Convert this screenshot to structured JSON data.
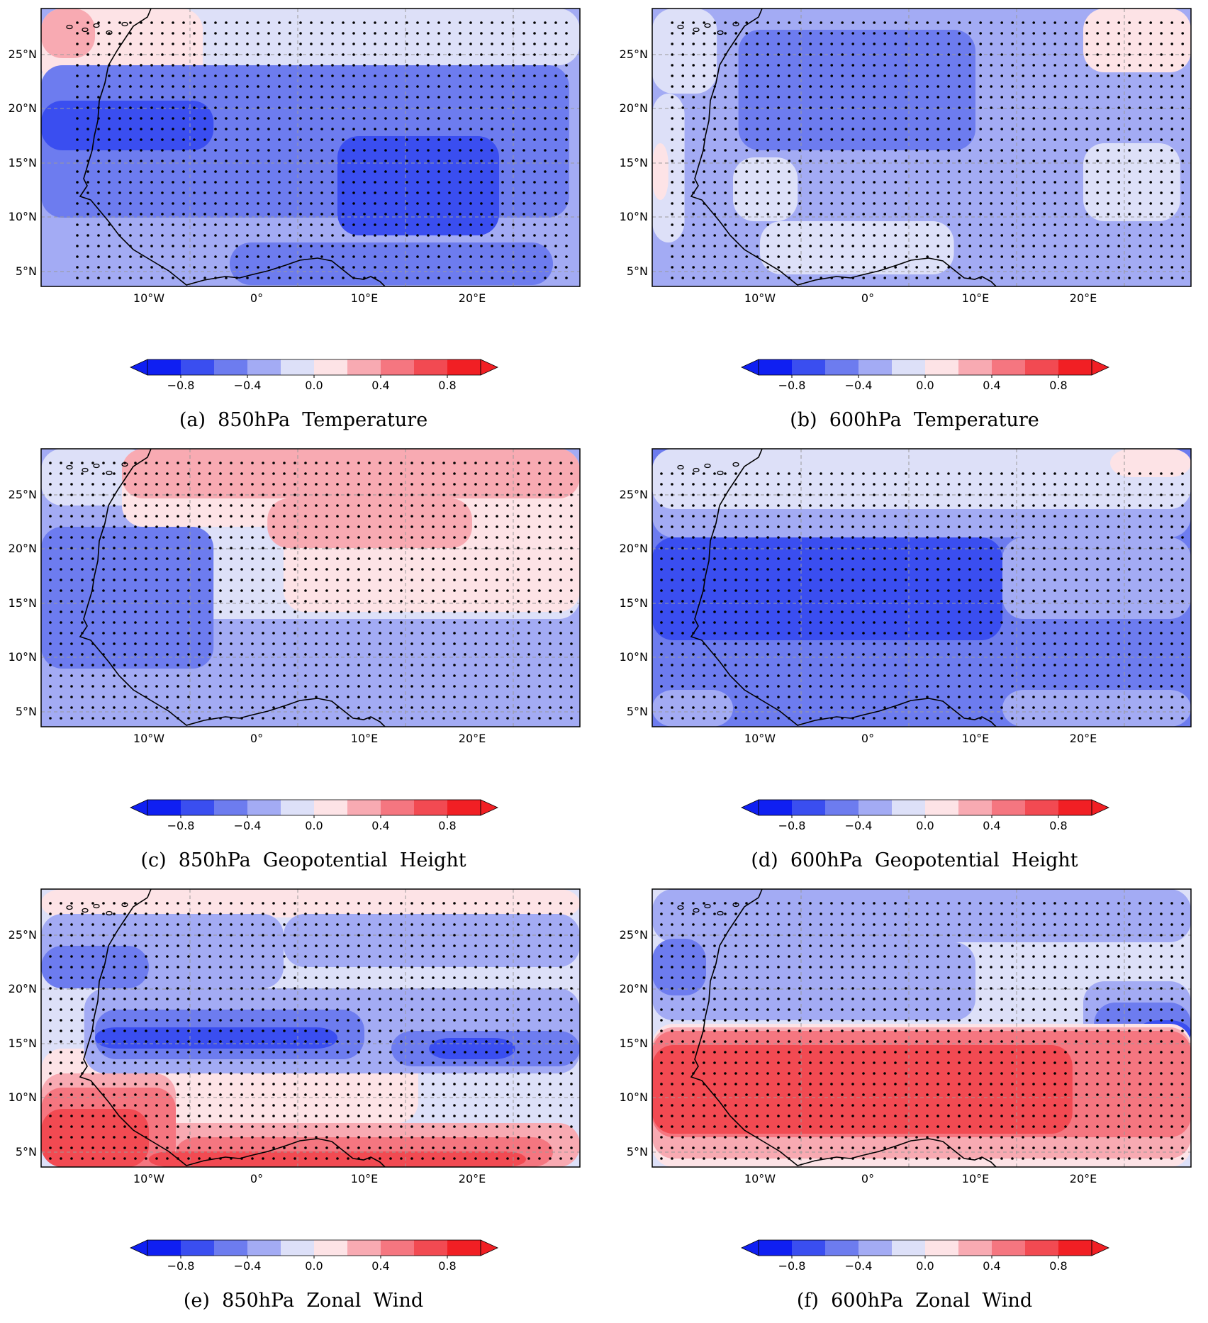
{
  "colorbar": {
    "colors": [
      "#0f1ff2",
      "#3a4ef0",
      "#6d7cef",
      "#a3abf4",
      "#dde0f8",
      "#fde3e6",
      "#f8aab2",
      "#f57680",
      "#f24a52",
      "#f11f24"
    ],
    "labels": [
      "−0.8",
      "−0.4",
      "0.0",
      "0.4",
      "0.8"
    ]
  },
  "axes": {
    "lon_labels": [
      "10°W",
      "0°",
      "10°E",
      "20°E"
    ],
    "lat_labels": [
      "25°N",
      "20°N",
      "15°N",
      "10°N",
      "5°N"
    ]
  },
  "panels": [
    {
      "id": "a",
      "caption": "(a)  850hPa  Temperature",
      "background": "#a3abf4",
      "layers": [
        {
          "color": "#dde0f8",
          "bands": [
            {
              "y0": 0,
              "y1": 80,
              "l": 0,
              "r": 1
            },
            {
              "y0": 80,
              "y1": 110,
              "l": 0,
              "r": 0.45
            }
          ]
        },
        {
          "color": "#fde3e6",
          "bands": [
            {
              "y0": 0,
              "y1": 110,
              "l": 0,
              "r": 0.3
            }
          ]
        },
        {
          "color": "#f8aab2",
          "bands": [
            {
              "y0": 0,
              "y1": 70,
              "l": 0,
              "r": 0.1
            }
          ]
        },
        {
          "color": "#6d7cef",
          "bands": [
            {
              "y0": 80,
              "y1": 295,
              "l": 0,
              "r": 0.98
            },
            {
              "y0": 330,
              "y1": 390,
              "l": 0.35,
              "r": 0.95
            }
          ]
        },
        {
          "color": "#3a4ef0",
          "bands": [
            {
              "y0": 130,
              "y1": 200,
              "l": 0,
              "r": 0.32
            },
            {
              "y0": 180,
              "y1": 320,
              "l": 0.55,
              "r": 0.85
            }
          ]
        }
      ],
      "stipple": [
        {
          "y0": 20,
          "y1": 385,
          "l": 0.05,
          "r": 0.99
        }
      ]
    },
    {
      "id": "b",
      "caption": "(b)  600hPa  Temperature",
      "background": "#a3abf4",
      "layers": [
        {
          "color": "#dde0f8",
          "bands": [
            {
              "y0": 0,
              "y1": 120,
              "l": 0,
              "r": 0.12
            },
            {
              "y0": 120,
              "y1": 330,
              "l": 0,
              "r": 0.06
            },
            {
              "y0": 300,
              "y1": 375,
              "l": 0.2,
              "r": 0.56
            },
            {
              "y0": 210,
              "y1": 300,
              "l": 0.15,
              "r": 0.27
            },
            {
              "y0": 190,
              "y1": 300,
              "l": 0.8,
              "r": 0.98
            }
          ]
        },
        {
          "color": "#fde3e6",
          "bands": [
            {
              "y0": 0,
              "y1": 90,
              "l": 0.8,
              "r": 1
            },
            {
              "y0": 190,
              "y1": 270,
              "l": 0,
              "r": 0.03
            }
          ]
        },
        {
          "color": "#6d7cef",
          "bands": [
            {
              "y0": 30,
              "y1": 200,
              "l": 0.16,
              "r": 0.6
            }
          ]
        }
      ],
      "stipple": [
        {
          "y0": 20,
          "y1": 385,
          "l": 0.02,
          "r": 0.99
        }
      ]
    },
    {
      "id": "c",
      "caption": "(c)  850hPa  Geopotential  Height",
      "background": "#a3abf4",
      "layers": [
        {
          "color": "#dde0f8",
          "bands": [
            {
              "y0": 0,
              "y1": 80,
              "l": 0,
              "r": 0.2
            },
            {
              "y0": 70,
              "y1": 240,
              "l": 0.22,
              "r": 1
            }
          ]
        },
        {
          "color": "#fde3e6",
          "bands": [
            {
              "y0": 0,
              "y1": 230,
              "l": 0.45,
              "r": 1
            },
            {
              "y0": 0,
              "y1": 110,
              "l": 0.15,
              "r": 0.45
            }
          ]
        },
        {
          "color": "#f8aab2",
          "bands": [
            {
              "y0": 0,
              "y1": 70,
              "l": 0.15,
              "r": 1
            },
            {
              "y0": 70,
              "y1": 140,
              "l": 0.42,
              "r": 0.8
            }
          ]
        },
        {
          "color": "#6d7cef",
          "bands": [
            {
              "y0": 110,
              "y1": 310,
              "l": 0,
              "r": 0.32
            }
          ]
        }
      ],
      "stipple": [
        {
          "y0": 20,
          "y1": 385,
          "l": 0.0,
          "r": 0.99
        }
      ]
    },
    {
      "id": "d",
      "caption": "(d)  600hPa  Geopotential  Height",
      "background": "#6d7cef",
      "layers": [
        {
          "color": "#a3abf4",
          "bands": [
            {
              "y0": 40,
              "y1": 125,
              "l": 0,
              "r": 1
            },
            {
              "y0": 125,
              "y1": 240,
              "l": 0.65,
              "r": 1
            },
            {
              "y0": 340,
              "y1": 392,
              "l": 0,
              "r": 0.15
            },
            {
              "y0": 340,
              "y1": 392,
              "l": 0.65,
              "r": 1
            }
          ]
        },
        {
          "color": "#dde0f8",
          "bands": [
            {
              "y0": 0,
              "y1": 85,
              "l": 0,
              "r": 1
            }
          ]
        },
        {
          "color": "#fde3e6",
          "bands": [
            {
              "y0": 0,
              "y1": 40,
              "l": 0.85,
              "r": 1
            }
          ]
        },
        {
          "color": "#3a4ef0",
          "bands": [
            {
              "y0": 125,
              "y1": 270,
              "l": 0,
              "r": 0.65
            }
          ]
        }
      ],
      "stipple": [
        {
          "y0": 35,
          "y1": 385,
          "l": 0.0,
          "r": 0.99
        }
      ]
    },
    {
      "id": "e",
      "caption": "(e)  850hPa  Zonal  Wind",
      "background": "#dde0f8",
      "layers": [
        {
          "color": "#fde3e6",
          "bands": [
            {
              "y0": 0,
              "y1": 40,
              "l": 0,
              "r": 1
            },
            {
              "y0": 225,
              "y1": 330,
              "l": 0,
              "r": 0.7
            }
          ]
        },
        {
          "color": "#a3abf4",
          "bands": [
            {
              "y0": 35,
              "y1": 140,
              "l": 0,
              "r": 0.45
            },
            {
              "y0": 35,
              "y1": 110,
              "l": 0.45,
              "r": 1
            },
            {
              "y0": 140,
              "y1": 260,
              "l": 0.08,
              "r": 1
            }
          ]
        },
        {
          "color": "#6d7cef",
          "bands": [
            {
              "y0": 80,
              "y1": 140,
              "l": 0,
              "r": 0.2
            },
            {
              "y0": 170,
              "y1": 240,
              "l": 0.1,
              "r": 0.6
            },
            {
              "y0": 200,
              "y1": 250,
              "l": 0.65,
              "r": 1
            }
          ]
        },
        {
          "color": "#3a4ef0",
          "bands": [
            {
              "y0": 195,
              "y1": 225,
              "l": 0.1,
              "r": 0.55
            },
            {
              "y0": 210,
              "y1": 240,
              "l": 0.72,
              "r": 0.88
            }
          ]
        },
        {
          "color": "#f8aab2",
          "bands": [
            {
              "y0": 260,
              "y1": 340,
              "l": 0,
              "r": 0.25
            },
            {
              "y0": 330,
              "y1": 392,
              "l": 0,
              "r": 1
            }
          ]
        },
        {
          "color": "#f57680",
          "bands": [
            {
              "y0": 280,
              "y1": 392,
              "l": 0,
              "r": 0.25
            },
            {
              "y0": 350,
              "y1": 392,
              "l": 0.25,
              "r": 0.95
            }
          ]
        },
        {
          "color": "#f24a52",
          "bands": [
            {
              "y0": 310,
              "y1": 392,
              "l": 0,
              "r": 0.2
            },
            {
              "y0": 370,
              "y1": 392,
              "l": 0.2,
              "r": 0.9
            }
          ]
        }
      ],
      "stipple": [
        {
          "y0": 20,
          "y1": 385,
          "l": 0.0,
          "r": 0.99
        }
      ]
    },
    {
      "id": "f",
      "caption": "(f)  600hPa  Zonal  Wind",
      "background": "#dde0f8",
      "layers": [
        {
          "color": "#a3abf4",
          "bands": [
            {
              "y0": 0,
              "y1": 75,
              "l": 0,
              "r": 1
            },
            {
              "y0": 75,
              "y1": 185,
              "l": 0,
              "r": 0.6
            },
            {
              "y0": 130,
              "y1": 230,
              "l": 0.8,
              "r": 1
            }
          ]
        },
        {
          "color": "#6d7cef",
          "bands": [
            {
              "y0": 70,
              "y1": 150,
              "l": 0,
              "r": 0.1
            },
            {
              "y0": 160,
              "y1": 230,
              "l": 0.82,
              "r": 1
            }
          ]
        },
        {
          "color": "#3a4ef0",
          "bands": [
            {
              "y0": 185,
              "y1": 220,
              "l": 0.9,
              "r": 1
            }
          ]
        },
        {
          "color": "#fde3e6",
          "bands": [
            {
              "y0": 190,
              "y1": 392,
              "l": 0,
              "r": 1
            }
          ]
        },
        {
          "color": "#f8aab2",
          "bands": [
            {
              "y0": 195,
              "y1": 380,
              "l": 0,
              "r": 1
            }
          ]
        },
        {
          "color": "#f57680",
          "bands": [
            {
              "y0": 200,
              "y1": 350,
              "l": 0,
              "r": 1
            }
          ]
        },
        {
          "color": "#f24a52",
          "bands": [
            {
              "y0": 220,
              "y1": 345,
              "l": 0,
              "r": 0.78
            }
          ]
        }
      ],
      "stipple": [
        {
          "y0": 20,
          "y1": 385,
          "l": 0.0,
          "r": 0.99
        }
      ]
    }
  ]
}
